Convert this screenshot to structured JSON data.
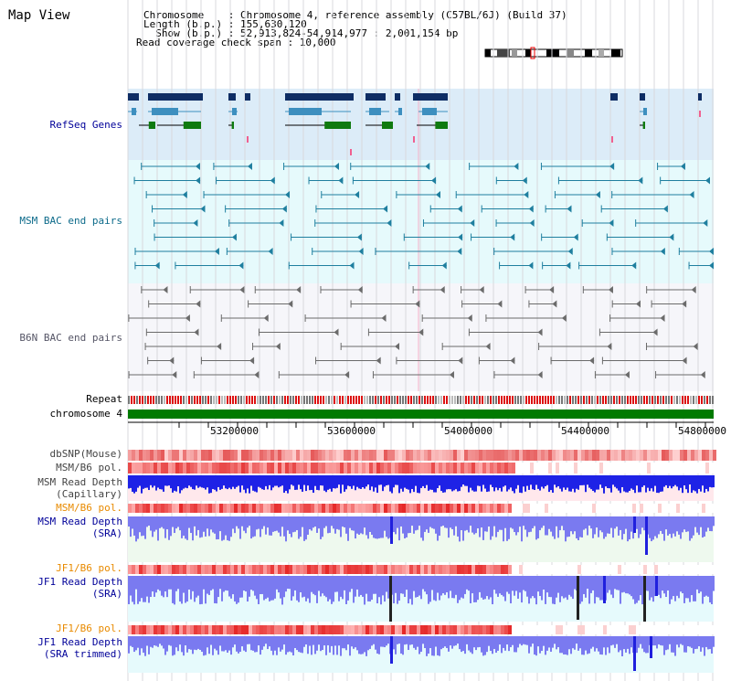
{
  "app": {
    "title": "Map View"
  },
  "info": {
    "line1": "Chromosome    : Chromosome 4, reference assembly (C57BL/6J) (Build 37)",
    "line2": "Length (b.p.) : 155,630,120",
    "line3": "  Show (b.p.) : 52,913,824-54,914,977 : 2,001,154 bp",
    "line4": "Read coverage check span : 10,000"
  },
  "tracks": {
    "refseq": "RefSeq Genes",
    "msm_bac": "MSM BAC end pairs",
    "b6n_bac": "B6N BAC end pairs",
    "repeat": "Repeat",
    "chromosome": "chromosome 4",
    "dbsnp": "dbSNP(Mouse)",
    "msm_b6_pol_1": "MSM/B6 pol.",
    "msm_depth_cap_1": "MSM Read Depth",
    "msm_depth_cap_2": "(Capillary)",
    "msm_b6_pol_2": "MSM/B6 pol.",
    "msm_depth_sra_1": "MSM Read Depth",
    "msm_depth_sra_2": "(SRA)",
    "jf1_b6_pol_1": "JF1/B6 pol.",
    "jf1_depth_sra_1": "JF1 Read Depth",
    "jf1_depth_sra_2": "(SRA)",
    "jf1_b6_pol_2": "JF1/B6 pol.",
    "jf1_depth_trim_1": "JF1 Read Depth",
    "jf1_depth_trim_2": "(SRA trimmed)"
  },
  "axis": {
    "ticks": [
      "53200000",
      "53600000",
      "54000000",
      "54400000",
      "54800000"
    ]
  },
  "colors": {
    "refseq_bg": "#dcecf8",
    "msm_bg": "#e6fafc",
    "b6n_bg": "#f6f6fa",
    "gene_dark": "#0e2d64",
    "gene_mid": "#3d8fbf",
    "gene_green": "#0f7a0f",
    "bac_teal": "#1f7f9f",
    "bac_gray": "#6b6b6b",
    "chrom_green": "#007a00",
    "label_blue": "#000099",
    "label_teal": "#0c6a8a",
    "label_orange": "#e88a00",
    "depth_blue": "#1e22e6",
    "depth_light": "#7a7af0"
  }
}
